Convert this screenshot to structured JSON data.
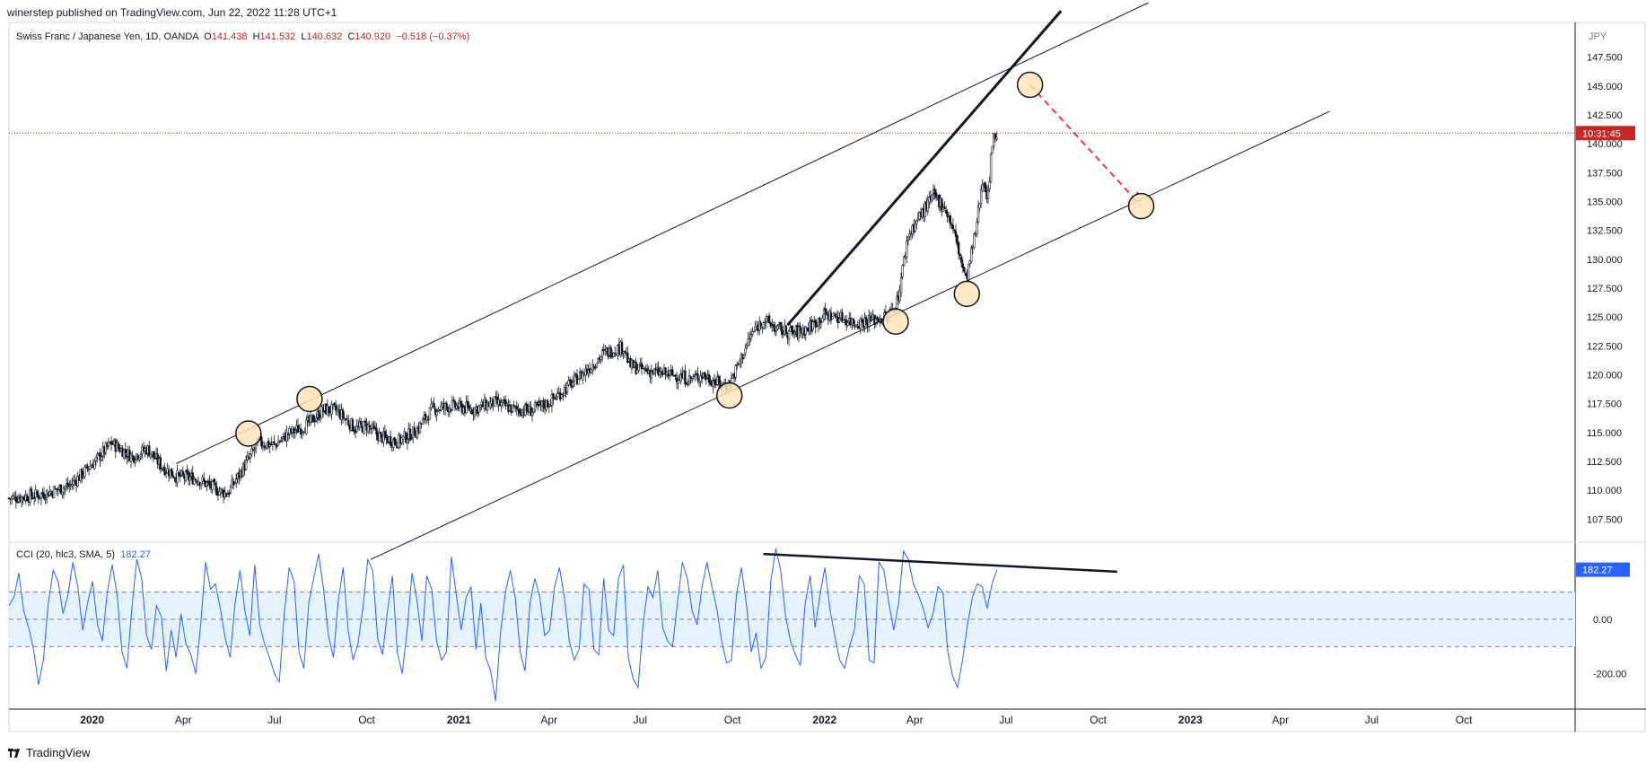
{
  "header": {
    "published_text": "winerstep published on TradingView.com, Jun 22, 2022 11:28 UTC+1"
  },
  "legend": {
    "symbol": "Swiss Franc / Japanese Yen, 1D, OANDA",
    "o_label": "O",
    "o_value": "141.438",
    "h_label": "H",
    "h_value": "141.532",
    "l_label": "L",
    "l_value": "140.632",
    "c_label": "C",
    "c_value": "140.920",
    "change": "−0.518 (−0.37%)"
  },
  "indicator": {
    "label": "CCI (20, hlc3, SMA, 5)",
    "value": "182.27"
  },
  "footer": {
    "brand": "TradingView"
  },
  "colors": {
    "up": "#26a69a",
    "down": "#ef5350",
    "candle": "#131722",
    "cci_line": "#2962ff",
    "cci_band": "#e3f2fd",
    "price_tag": "#c62828",
    "circle_fill": "#fde4b8",
    "arrow": "#f23645"
  },
  "chart_data": [
    {
      "type": "candlestick",
      "title": "Swiss Franc / Japanese Yen, 1D, OANDA",
      "currency_label": "JPY",
      "last_price_tag": "10:31:45",
      "last_price": 140.92,
      "y_ticks": [
        "147.500",
        "145.000",
        "142.500",
        "140.000",
        "137.500",
        "135.000",
        "132.500",
        "130.000",
        "127.500",
        "125.000",
        "122.500",
        "120.000",
        "117.500",
        "115.000",
        "112.500",
        "110.000",
        "107.500"
      ],
      "ylim": [
        105.5,
        150.5
      ],
      "x_ticks": [
        "2020",
        "Apr",
        "Jul",
        "Oct",
        "2021",
        "Apr",
        "Jul",
        "Oct",
        "2022",
        "Apr",
        "Jul",
        "Oct",
        "2023",
        "Apr",
        "Jul",
        "Oct"
      ],
      "x_tick_dates": [
        "2020-01-01",
        "2020-04-01",
        "2020-07-01",
        "2020-10-01",
        "2021-01-01",
        "2021-04-01",
        "2021-07-01",
        "2021-10-01",
        "2022-01-01",
        "2022-04-01",
        "2022-07-01",
        "2022-10-01",
        "2023-01-01",
        "2023-04-01",
        "2023-07-01",
        "2023-10-01"
      ],
      "xlim": [
        "2019-10-10",
        "2024-01-20"
      ],
      "close_path": [
        [
          "2019-10-10",
          109.3
        ],
        [
          "2019-11-10",
          109.6
        ],
        [
          "2019-12-10",
          110.4
        ],
        [
          "2020-01-05",
          112.6
        ],
        [
          "2020-01-20",
          114.1
        ],
        [
          "2020-02-10",
          112.9
        ],
        [
          "2020-02-25",
          113.6
        ],
        [
          "2020-03-10",
          112.1
        ],
        [
          "2020-03-25",
          111.2
        ],
        [
          "2020-04-15",
          111.0
        ],
        [
          "2020-05-05",
          110.0
        ],
        [
          "2020-05-15",
          109.7
        ],
        [
          "2020-05-30",
          111.8
        ],
        [
          "2020-06-15",
          114.1
        ],
        [
          "2020-07-01",
          113.9
        ],
        [
          "2020-07-15",
          114.9
        ],
        [
          "2020-08-01",
          115.6
        ],
        [
          "2020-08-20",
          117.0
        ],
        [
          "2020-09-01",
          116.9
        ],
        [
          "2020-09-20",
          115.3
        ],
        [
          "2020-10-01",
          115.6
        ],
        [
          "2020-10-15",
          114.6
        ],
        [
          "2020-11-01",
          114.2
        ],
        [
          "2020-11-20",
          115.2
        ],
        [
          "2020-12-05",
          117.0
        ],
        [
          "2020-12-25",
          117.3
        ],
        [
          "2021-01-15",
          117.0
        ],
        [
          "2021-02-05",
          117.6
        ],
        [
          "2021-02-25",
          117.0
        ],
        [
          "2021-03-15",
          116.9
        ],
        [
          "2021-04-01",
          117.6
        ],
        [
          "2021-04-20",
          119.0
        ],
        [
          "2021-05-10",
          120.5
        ],
        [
          "2021-05-25",
          121.8
        ],
        [
          "2021-06-05",
          122.2
        ],
        [
          "2021-06-15",
          122.4
        ],
        [
          "2021-06-20",
          120.8
        ],
        [
          "2021-07-01",
          120.5
        ],
        [
          "2021-07-15",
          120.2
        ],
        [
          "2021-08-01",
          120.0
        ],
        [
          "2021-08-20",
          119.6
        ],
        [
          "2021-09-01",
          120.0
        ],
        [
          "2021-09-20",
          119.1
        ],
        [
          "2021-09-28",
          119.2
        ],
        [
          "2021-10-10",
          121.5
        ],
        [
          "2021-10-20",
          123.5
        ],
        [
          "2021-11-01",
          124.8
        ],
        [
          "2021-11-15",
          123.9
        ],
        [
          "2021-12-01",
          123.6
        ],
        [
          "2021-12-15",
          124.0
        ],
        [
          "2022-01-01",
          125.2
        ],
        [
          "2022-01-15",
          125.0
        ],
        [
          "2022-02-01",
          124.5
        ],
        [
          "2022-02-20",
          124.8
        ],
        [
          "2022-03-05",
          125.0
        ],
        [
          "2022-03-15",
          126.5
        ],
        [
          "2022-03-25",
          132.0
        ],
        [
          "2022-04-05",
          133.6
        ],
        [
          "2022-04-20",
          135.5
        ],
        [
          "2022-05-01",
          134.5
        ],
        [
          "2022-05-10",
          132.4
        ],
        [
          "2022-05-18",
          129.6
        ],
        [
          "2022-05-22",
          128.1
        ],
        [
          "2022-06-01",
          132.5
        ],
        [
          "2022-06-08",
          137.2
        ],
        [
          "2022-06-13",
          135.2
        ],
        [
          "2022-06-17",
          140.2
        ],
        [
          "2022-06-22",
          140.9
        ]
      ],
      "trendlines": [
        {
          "name": "upper-channel",
          "from": [
            "2020-03-25",
            112.3
          ],
          "to": [
            "2022-11-20",
            152.2
          ]
        },
        {
          "name": "lower-channel",
          "from": [
            "2020-10-05",
            104.0
          ],
          "to": [
            "2023-05-20",
            142.8
          ]
        },
        {
          "name": "wedge-top",
          "from": [
            "2021-11-25",
            124.3
          ],
          "to": [
            "2022-08-25",
            151.5
          ]
        }
      ],
      "circled_points": [
        [
          "2020-06-05",
          114.9
        ],
        [
          "2020-08-05",
          117.9
        ],
        [
          "2021-09-28",
          118.2
        ],
        [
          "2022-03-13",
          124.6
        ],
        [
          "2022-05-23",
          127.0
        ],
        [
          "2022-07-25",
          145.1
        ],
        [
          "2022-11-13",
          134.6
        ]
      ],
      "projection_arrow": {
        "from": [
          "2022-07-25",
          145.1
        ],
        "to": [
          "2022-11-13",
          134.6
        ]
      }
    },
    {
      "type": "line",
      "title": "CCI (20, hlc3, SMA, 5)",
      "y_ticks": [
        "0.00",
        "-200.00"
      ],
      "band": [
        -100,
        100
      ],
      "ylim": [
        -330,
        280
      ],
      "last_value": 182.27,
      "series": [
        {
          "name": "CCI",
          "color": "#2962ff",
          "values": [
            50,
            80,
            170,
            30,
            -30,
            -110,
            -240,
            -150,
            60,
            180,
            140,
            20,
            90,
            210,
            120,
            -40,
            60,
            140,
            -20,
            -80,
            100,
            200,
            90,
            -120,
            -180,
            40,
            220,
            150,
            -60,
            -110,
            50,
            10,
            -190,
            -40,
            -140,
            20,
            -90,
            -130,
            -200,
            -20,
            210,
            110,
            130,
            40,
            -70,
            -140,
            60,
            180,
            30,
            -60,
            200,
            -20,
            -90,
            -140,
            -200,
            -230,
            20,
            190,
            140,
            -120,
            -180,
            60,
            150,
            240,
            110,
            -60,
            -140,
            70,
            190,
            -40,
            -150,
            -90,
            40,
            220,
            180,
            -70,
            -130,
            30,
            160,
            -120,
            -200,
            -40,
            170,
            70,
            -80,
            160,
            110,
            -80,
            -150,
            -120,
            230,
            90,
            -40,
            80,
            120,
            -110,
            60,
            -140,
            -190,
            -300,
            -50,
            100,
            180,
            80,
            -120,
            -190,
            60,
            150,
            80,
            -60,
            -40,
            120,
            190,
            80,
            -80,
            -150,
            -110,
            130,
            110,
            -110,
            -130,
            150,
            -40,
            -60,
            150,
            200,
            -140,
            -220,
            -250,
            -20,
            120,
            80,
            180,
            -30,
            -80,
            -100,
            60,
            210,
            150,
            30,
            -20,
            120,
            210,
            120,
            40,
            -80,
            -160,
            -150,
            90,
            190,
            60,
            -120,
            -50,
            -180,
            -140,
            140,
            260,
            180,
            10,
            -80,
            -130,
            -170,
            60,
            160,
            -30,
            90,
            190,
            40,
            -60,
            -150,
            -180,
            -100,
            -40,
            160,
            130,
            -150,
            -160,
            210,
            180,
            60,
            -40,
            60,
            250,
            220,
            130,
            90,
            40,
            -30,
            20,
            120,
            100,
            -120,
            -210,
            -250,
            -150,
            -20,
            80,
            130,
            120,
            40,
            130,
            182
          ]
        }
      ],
      "trendline": {
        "from": [
          0,
          240
        ],
        "to": [
          1,
          175
        ]
      }
    }
  ]
}
